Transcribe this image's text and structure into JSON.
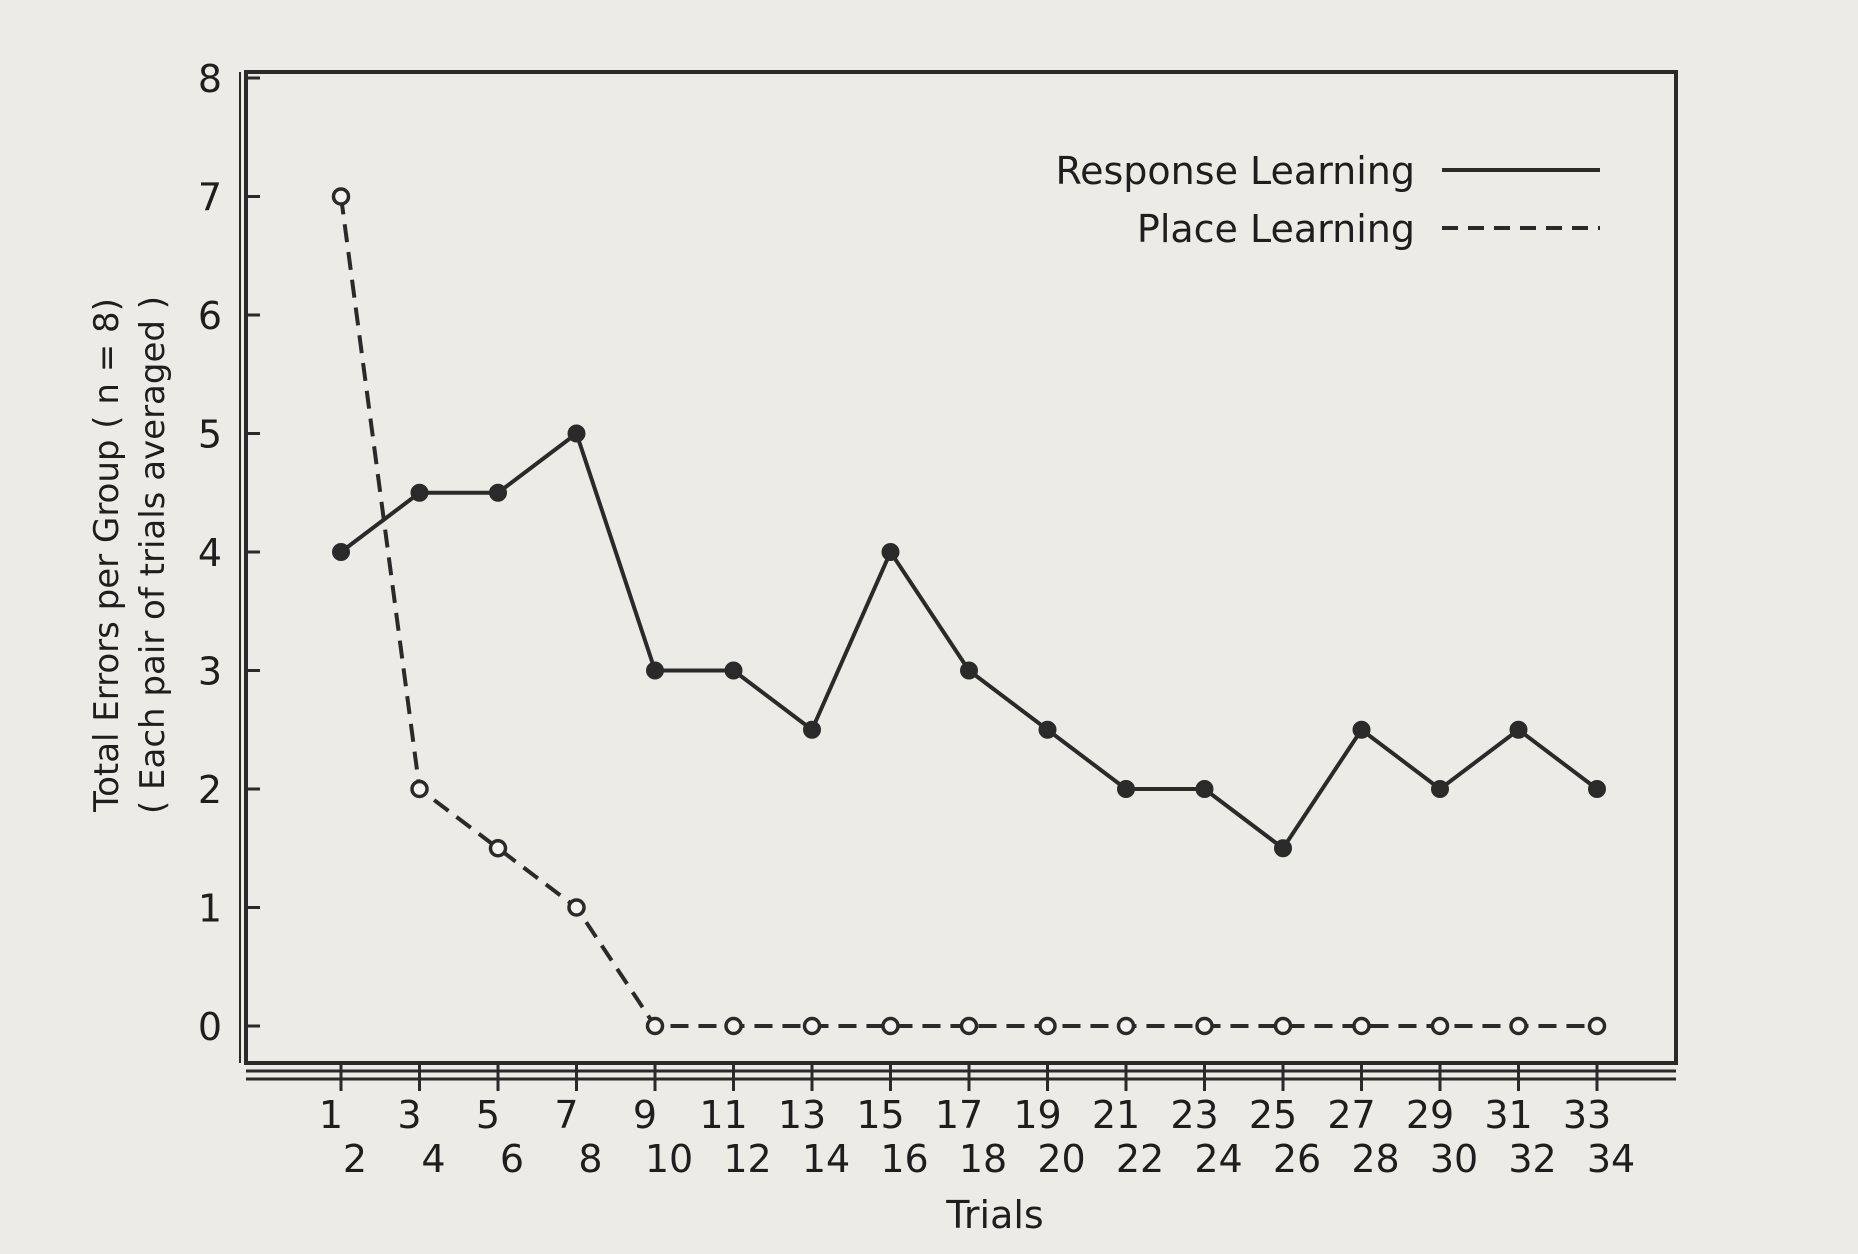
{
  "chart_data": {
    "type": "line",
    "xlabel": "Trials",
    "ylabel_line1": "Total Errors per Group  ( n = 8)",
    "ylabel_line2": "( Each pair of trials averaged )",
    "ylim": [
      0,
      8
    ],
    "yticks": [
      "0",
      "1",
      "2",
      "3",
      "4",
      "5",
      "6",
      "7",
      "8"
    ],
    "x_top_labels": [
      "1",
      "3",
      "5",
      "7",
      "9",
      "11",
      "13",
      "15",
      "17",
      "19",
      "21",
      "23",
      "25",
      "27",
      "29",
      "31",
      "33"
    ],
    "x_bottom_labels": [
      "2",
      "4",
      "6",
      "8",
      "10",
      "12",
      "14",
      "16",
      "18",
      "20",
      "22",
      "24",
      "26",
      "28",
      "30",
      "32",
      "34"
    ],
    "legend_position": "top-right",
    "grid": false,
    "series": [
      {
        "name": "Response Learning",
        "style": "solid",
        "marker": "filled-circle",
        "color": "#2a2a2a",
        "values": [
          4,
          4.5,
          4.5,
          5,
          3,
          3,
          2.5,
          4,
          3,
          2.5,
          2,
          2,
          1.5,
          2.5,
          2,
          2.5,
          2
        ]
      },
      {
        "name": "Place Learning",
        "style": "dashed",
        "marker": "open-circle",
        "color": "#2a2a2a",
        "values": [
          7,
          2,
          1.5,
          1,
          0,
          0,
          0,
          0,
          0,
          0,
          0,
          0,
          0,
          0,
          0,
          0,
          0
        ]
      }
    ]
  }
}
